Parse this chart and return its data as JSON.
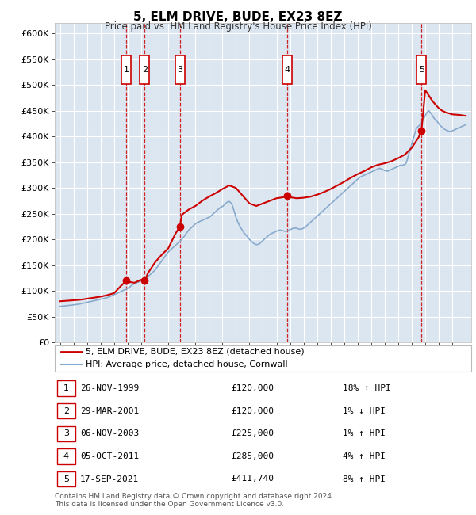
{
  "title": "5, ELM DRIVE, BUDE, EX23 8EZ",
  "subtitle": "Price paid vs. HM Land Registry's House Price Index (HPI)",
  "legend_property": "5, ELM DRIVE, BUDE, EX23 8EZ (detached house)",
  "legend_hpi": "HPI: Average price, detached house, Cornwall",
  "footer": "Contains HM Land Registry data © Crown copyright and database right 2024.\nThis data is licensed under the Open Government Licence v3.0.",
  "property_color": "#cc0000",
  "hpi_color": "#88aacc",
  "fig_bg_color": "#ffffff",
  "plot_bg_color": "#dce6f1",
  "grid_color": "#ffffff",
  "transactions": [
    {
      "num": 1,
      "date": "26-NOV-1999",
      "price": 120000,
      "price_str": "£120,000",
      "pct": "18%",
      "dir": "↑"
    },
    {
      "num": 2,
      "date": "29-MAR-2001",
      "price": 120000,
      "price_str": "£120,000",
      "pct": "1%",
      "dir": "↓"
    },
    {
      "num": 3,
      "date": "06-NOV-2003",
      "price": 225000,
      "price_str": "£225,000",
      "pct": "1%",
      "dir": "↑"
    },
    {
      "num": 4,
      "date": "05-OCT-2011",
      "price": 285000,
      "price_str": "£285,000",
      "pct": "4%",
      "dir": "↑"
    },
    {
      "num": 5,
      "date": "17-SEP-2021",
      "price": 411740,
      "price_str": "£411,740",
      "pct": "8%",
      "dir": "↑"
    }
  ],
  "transaction_years": [
    1999.9,
    2001.25,
    2003.85,
    2011.77,
    2021.72
  ],
  "ylim": [
    0,
    620000
  ],
  "xlim_start": 1994.6,
  "xlim_end": 2025.4,
  "ytick_step": 50000,
  "hpi_years": [
    1995.0,
    1995.08,
    1995.17,
    1995.25,
    1995.33,
    1995.42,
    1995.5,
    1995.58,
    1995.67,
    1995.75,
    1995.83,
    1995.92,
    1996.0,
    1996.08,
    1996.17,
    1996.25,
    1996.33,
    1996.42,
    1996.5,
    1996.58,
    1996.67,
    1996.75,
    1996.83,
    1996.92,
    1997.0,
    1997.08,
    1997.17,
    1997.25,
    1997.33,
    1997.42,
    1997.5,
    1997.58,
    1997.67,
    1997.75,
    1997.83,
    1997.92,
    1998.0,
    1998.08,
    1998.17,
    1998.25,
    1998.33,
    1998.42,
    1998.5,
    1998.58,
    1998.67,
    1998.75,
    1998.83,
    1998.92,
    1999.0,
    1999.08,
    1999.17,
    1999.25,
    1999.33,
    1999.42,
    1999.5,
    1999.58,
    1999.67,
    1999.75,
    1999.83,
    1999.92,
    2000.0,
    2000.08,
    2000.17,
    2000.25,
    2000.33,
    2000.42,
    2000.5,
    2000.58,
    2000.67,
    2000.75,
    2000.83,
    2000.92,
    2001.0,
    2001.08,
    2001.17,
    2001.25,
    2001.33,
    2001.42,
    2001.5,
    2001.58,
    2001.67,
    2001.75,
    2001.83,
    2001.92,
    2002.0,
    2002.08,
    2002.17,
    2002.25,
    2002.33,
    2002.42,
    2002.5,
    2002.58,
    2002.67,
    2002.75,
    2002.83,
    2002.92,
    2003.0,
    2003.08,
    2003.17,
    2003.25,
    2003.33,
    2003.42,
    2003.5,
    2003.58,
    2003.67,
    2003.75,
    2003.83,
    2003.92,
    2004.0,
    2004.08,
    2004.17,
    2004.25,
    2004.33,
    2004.42,
    2004.5,
    2004.58,
    2004.67,
    2004.75,
    2004.83,
    2004.92,
    2005.0,
    2005.08,
    2005.17,
    2005.25,
    2005.33,
    2005.42,
    2005.5,
    2005.58,
    2005.67,
    2005.75,
    2005.83,
    2005.92,
    2006.0,
    2006.08,
    2006.17,
    2006.25,
    2006.33,
    2006.42,
    2006.5,
    2006.58,
    2006.67,
    2006.75,
    2006.83,
    2006.92,
    2007.0,
    2007.08,
    2007.17,
    2007.25,
    2007.33,
    2007.42,
    2007.5,
    2007.58,
    2007.67,
    2007.75,
    2007.83,
    2007.92,
    2008.0,
    2008.08,
    2008.17,
    2008.25,
    2008.33,
    2008.42,
    2008.5,
    2008.58,
    2008.67,
    2008.75,
    2008.83,
    2008.92,
    2009.0,
    2009.08,
    2009.17,
    2009.25,
    2009.33,
    2009.42,
    2009.5,
    2009.58,
    2009.67,
    2009.75,
    2009.83,
    2009.92,
    2010.0,
    2010.08,
    2010.17,
    2010.25,
    2010.33,
    2010.42,
    2010.5,
    2010.58,
    2010.67,
    2010.75,
    2010.83,
    2010.92,
    2011.0,
    2011.08,
    2011.17,
    2011.25,
    2011.33,
    2011.42,
    2011.5,
    2011.58,
    2011.67,
    2011.75,
    2011.83,
    2011.92,
    2012.0,
    2012.08,
    2012.17,
    2012.25,
    2012.33,
    2012.42,
    2012.5,
    2012.58,
    2012.67,
    2012.75,
    2012.83,
    2012.92,
    2013.0,
    2013.08,
    2013.17,
    2013.25,
    2013.33,
    2013.42,
    2013.5,
    2013.58,
    2013.67,
    2013.75,
    2013.83,
    2013.92,
    2014.0,
    2014.08,
    2014.17,
    2014.25,
    2014.33,
    2014.42,
    2014.5,
    2014.58,
    2014.67,
    2014.75,
    2014.83,
    2014.92,
    2015.0,
    2015.08,
    2015.17,
    2015.25,
    2015.33,
    2015.42,
    2015.5,
    2015.58,
    2015.67,
    2015.75,
    2015.83,
    2015.92,
    2016.0,
    2016.08,
    2016.17,
    2016.25,
    2016.33,
    2016.42,
    2016.5,
    2016.58,
    2016.67,
    2016.75,
    2016.83,
    2016.92,
    2017.0,
    2017.08,
    2017.17,
    2017.25,
    2017.33,
    2017.42,
    2017.5,
    2017.58,
    2017.67,
    2017.75,
    2017.83,
    2017.92,
    2018.0,
    2018.08,
    2018.17,
    2018.25,
    2018.33,
    2018.42,
    2018.5,
    2018.58,
    2018.67,
    2018.75,
    2018.83,
    2018.92,
    2019.0,
    2019.08,
    2019.17,
    2019.25,
    2019.33,
    2019.42,
    2019.5,
    2019.58,
    2019.67,
    2019.75,
    2019.83,
    2019.92,
    2020.0,
    2020.08,
    2020.17,
    2020.25,
    2020.33,
    2020.42,
    2020.5,
    2020.58,
    2020.67,
    2020.75,
    2020.83,
    2020.92,
    2021.0,
    2021.08,
    2021.17,
    2021.25,
    2021.33,
    2021.42,
    2021.5,
    2021.58,
    2021.67,
    2021.75,
    2021.83,
    2021.92,
    2022.0,
    2022.08,
    2022.17,
    2022.25,
    2022.33,
    2022.42,
    2022.5,
    2022.58,
    2022.67,
    2022.75,
    2022.83,
    2022.92,
    2023.0,
    2023.08,
    2023.17,
    2023.25,
    2023.33,
    2023.42,
    2023.5,
    2023.58,
    2023.67,
    2023.75,
    2023.83,
    2023.92,
    2024.0,
    2024.08,
    2024.17,
    2024.25,
    2024.33,
    2024.42,
    2024.5,
    2024.58,
    2024.67,
    2024.75,
    2024.83,
    2024.92,
    2025.0
  ],
  "hpi_values": [
    70000,
    70200,
    70500,
    70800,
    71000,
    71200,
    71500,
    71800,
    72000,
    72200,
    72500,
    72800,
    73000,
    73200,
    73500,
    73800,
    74000,
    74500,
    75000,
    75500,
    76000,
    76500,
    77000,
    77500,
    78000,
    78500,
    79000,
    79500,
    80000,
    80500,
    81000,
    81500,
    82000,
    82500,
    83000,
    83500,
    84000,
    84500,
    85000,
    85500,
    86000,
    86800,
    87500,
    88000,
    89000,
    90000,
    91000,
    92000,
    93000,
    94000,
    95000,
    96000,
    97000,
    98000,
    99000,
    100000,
    101000,
    102000,
    103000,
    104000,
    105000,
    107000,
    108000,
    110000,
    112000,
    113000,
    114000,
    115000,
    116000,
    117000,
    118000,
    119000,
    120000,
    121000,
    122000,
    123000,
    124000,
    126000,
    128000,
    130000,
    132000,
    134000,
    136000,
    138000,
    140000,
    143000,
    146000,
    149000,
    152000,
    155000,
    158000,
    161000,
    164000,
    167000,
    170000,
    173000,
    176000,
    178000,
    180000,
    182000,
    184000,
    186000,
    188000,
    190000,
    192000,
    194000,
    196000,
    198000,
    200000,
    203000,
    206000,
    209000,
    212000,
    215000,
    218000,
    220000,
    222000,
    224000,
    226000,
    228000,
    230000,
    232000,
    233000,
    234000,
    235000,
    236000,
    237000,
    238000,
    239000,
    240000,
    241000,
    242000,
    243000,
    244000,
    246000,
    248000,
    250000,
    252000,
    254000,
    256000,
    258000,
    260000,
    262000,
    263000,
    264000,
    266000,
    268000,
    270000,
    272000,
    273000,
    274000,
    272000,
    270000,
    265000,
    258000,
    250000,
    243000,
    238000,
    232000,
    228000,
    224000,
    220000,
    217000,
    213000,
    211000,
    208000,
    206000,
    203000,
    200000,
    198000,
    196000,
    194000,
    192000,
    191000,
    190000,
    190000,
    191000,
    192000,
    194000,
    196000,
    198000,
    200000,
    202000,
    204000,
    206000,
    208000,
    210000,
    211000,
    212000,
    213000,
    214000,
    215000,
    216000,
    217000,
    218000,
    218000,
    218000,
    217000,
    217000,
    216000,
    216000,
    216000,
    217000,
    218000,
    219000,
    220000,
    221000,
    222000,
    222000,
    222000,
    222000,
    221000,
    220000,
    220000,
    220000,
    221000,
    222000,
    223000,
    225000,
    227000,
    229000,
    231000,
    233000,
    235000,
    237000,
    239000,
    241000,
    243000,
    245000,
    247000,
    249000,
    251000,
    253000,
    255000,
    257000,
    259000,
    261000,
    263000,
    265000,
    267000,
    269000,
    271000,
    273000,
    275000,
    277000,
    279000,
    281000,
    283000,
    285000,
    287000,
    289000,
    291000,
    293000,
    295000,
    297000,
    299000,
    301000,
    303000,
    305000,
    307000,
    309000,
    311000,
    313000,
    315000,
    317000,
    319000,
    321000,
    322000,
    323000,
    324000,
    325000,
    326000,
    327000,
    328000,
    329000,
    330000,
    331000,
    332000,
    333000,
    334000,
    335000,
    336000,
    337000,
    338000,
    338000,
    337000,
    336000,
    335000,
    334000,
    333000,
    333000,
    333000,
    334000,
    335000,
    336000,
    337000,
    338000,
    339000,
    340000,
    341000,
    342000,
    343000,
    344000,
    344000,
    344000,
    345000,
    346000,
    348000,
    355000,
    363000,
    370000,
    378000,
    385000,
    393000,
    400000,
    408000,
    415000,
    418000,
    420000,
    422000,
    425000,
    428000,
    432000,
    436000,
    440000,
    445000,
    448000,
    450000,
    448000,
    445000,
    442000,
    438000,
    435000,
    432000,
    430000,
    428000,
    425000,
    422000,
    420000,
    418000,
    416000,
    414000,
    413000,
    412000,
    411000,
    410000,
    410000,
    410000,
    411000,
    412000,
    413000,
    414000,
    415000,
    416000,
    417000,
    418000,
    419000,
    420000,
    421000,
    422000,
    423000
  ],
  "property_years": [
    1995.0,
    1995.5,
    1996.0,
    1996.5,
    1997.0,
    1997.5,
    1998.0,
    1998.5,
    1999.0,
    1999.5,
    1999.9,
    2000.0,
    2000.5,
    2001.0,
    2001.25,
    2001.5,
    2002.0,
    2002.5,
    2003.0,
    2003.5,
    2003.85,
    2004.0,
    2004.5,
    2005.0,
    2005.5,
    2006.0,
    2006.5,
    2007.0,
    2007.5,
    2008.0,
    2008.5,
    2009.0,
    2009.5,
    2010.0,
    2010.5,
    2011.0,
    2011.5,
    2011.77,
    2012.0,
    2012.5,
    2013.0,
    2013.5,
    2014.0,
    2014.5,
    2015.0,
    2015.5,
    2016.0,
    2016.5,
    2017.0,
    2017.5,
    2018.0,
    2018.5,
    2019.0,
    2019.5,
    2020.0,
    2020.5,
    2021.0,
    2021.5,
    2021.72,
    2022.0,
    2022.25,
    2022.5,
    2022.75,
    2023.0,
    2023.25,
    2023.5,
    2023.75,
    2024.0,
    2024.5,
    2025.0
  ],
  "property_values": [
    80000,
    81000,
    82000,
    83000,
    85000,
    87000,
    89000,
    92000,
    96000,
    110000,
    120000,
    118000,
    116000,
    122000,
    120000,
    135000,
    155000,
    170000,
    183000,
    210000,
    225000,
    248000,
    258000,
    265000,
    275000,
    283000,
    290000,
    298000,
    305000,
    300000,
    285000,
    270000,
    265000,
    270000,
    275000,
    280000,
    282000,
    285000,
    282000,
    280000,
    281000,
    283000,
    287000,
    292000,
    298000,
    305000,
    312000,
    320000,
    327000,
    333000,
    340000,
    345000,
    348000,
    352000,
    358000,
    365000,
    378000,
    398000,
    411740,
    490000,
    480000,
    470000,
    462000,
    455000,
    450000,
    447000,
    445000,
    443000,
    442000,
    440000
  ]
}
